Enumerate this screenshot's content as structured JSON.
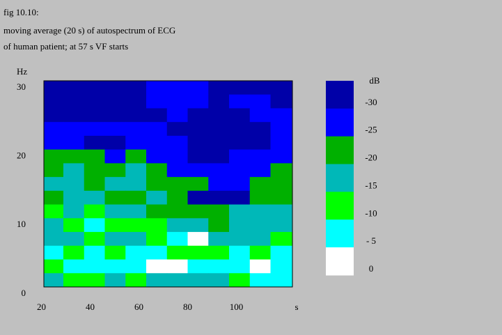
{
  "chart_data": {
    "type": "heatmap",
    "title_lines": [
      "fig 10.10:",
      "moving average (20 s) of autospectrum of ECG",
      "of human patient; at 57 s VF starts"
    ],
    "ylabel": "Hz",
    "xlabel": "s",
    "legend_title": "dB",
    "xlim": [
      21,
      123
    ],
    "xticks": [
      20,
      40,
      60,
      80,
      100
    ],
    "ylim": [
      1,
      31
    ],
    "yticks": [
      0,
      10,
      20,
      30
    ],
    "x": [
      25,
      33,
      42,
      50,
      59,
      67,
      76,
      84,
      93,
      101,
      110,
      118
    ],
    "y": [
      30,
      28,
      26,
      24,
      22,
      20,
      18,
      16,
      14,
      12,
      10,
      8,
      6,
      4,
      2
    ],
    "z": [
      [
        -30,
        -30,
        -30,
        -30,
        -30,
        -25,
        -25,
        -25,
        -30,
        -30,
        -30,
        -30
      ],
      [
        -30,
        -30,
        -30,
        -30,
        -30,
        -25,
        -25,
        -25,
        -30,
        -25,
        -25,
        -30
      ],
      [
        -30,
        -30,
        -30,
        -30,
        -30,
        -30,
        -25,
        -30,
        -30,
        -30,
        -25,
        -25
      ],
      [
        -25,
        -25,
        -25,
        -25,
        -25,
        -25,
        -30,
        -30,
        -30,
        -30,
        -30,
        -25
      ],
      [
        -25,
        -25,
        -30,
        -30,
        -25,
        -25,
        -25,
        -30,
        -30,
        -30,
        -30,
        -25
      ],
      [
        -20,
        -20,
        -20,
        -25,
        -20,
        -25,
        -25,
        -30,
        -30,
        -25,
        -25,
        -25
      ],
      [
        -20,
        -15,
        -20,
        -20,
        -15,
        -20,
        -25,
        -25,
        -25,
        -25,
        -25,
        -20
      ],
      [
        -15,
        -15,
        -20,
        -15,
        -15,
        -20,
        -20,
        -20,
        -25,
        -25,
        -20,
        -20
      ],
      [
        -20,
        -15,
        -15,
        -20,
        -20,
        -15,
        -20,
        -30,
        -30,
        -30,
        -20,
        -20
      ],
      [
        -10,
        -15,
        -10,
        -15,
        -15,
        -20,
        -20,
        -20,
        -20,
        -15,
        -15,
        -15
      ],
      [
        -15,
        -10,
        -5,
        -10,
        -10,
        -10,
        -15,
        -15,
        -20,
        -15,
        -15,
        -15
      ],
      [
        -15,
        -15,
        -10,
        -15,
        -15,
        -10,
        -5,
        0,
        -15,
        -15,
        -15,
        -10
      ],
      [
        -5,
        -10,
        -5,
        -10,
        -5,
        -5,
        -10,
        -10,
        -10,
        -5,
        -10,
        -5
      ],
      [
        -10,
        -5,
        -5,
        -5,
        -5,
        0,
        0,
        -5,
        -5,
        -5,
        0,
        -5
      ],
      [
        -15,
        -10,
        -10,
        -15,
        -10,
        -15,
        -15,
        -15,
        -15,
        -10,
        -5,
        -5
      ]
    ],
    "levels": [
      -30,
      -25,
      -20,
      -15,
      -10,
      {
        "value": -5,
        "label": "- 5"
      },
      0
    ],
    "colors": [
      "#0000a8",
      "#0000ff",
      "#00b000",
      "#00b8b8",
      "#00ff00",
      "#00ffff",
      "#ffffff"
    ]
  }
}
